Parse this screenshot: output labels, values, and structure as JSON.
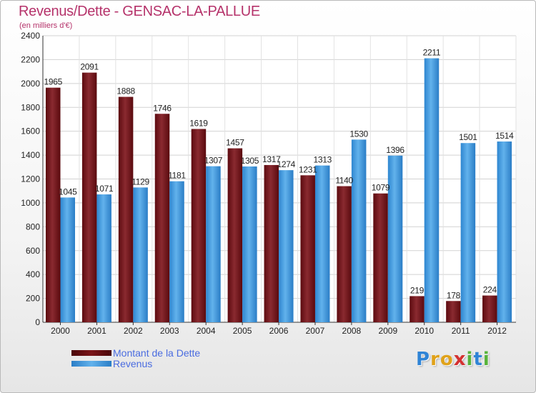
{
  "chart_data": {
    "type": "bar",
    "title": "Revenus/Dette - GENSAC-LA-PALLUE",
    "subtitle": "(en milliers d'€)",
    "categories": [
      "2000",
      "2001",
      "2002",
      "2003",
      "2004",
      "2005",
      "2006",
      "2007",
      "2008",
      "2009",
      "2010",
      "2011",
      "2012"
    ],
    "series": [
      {
        "name": "Montant de la Dette",
        "color": "#7a1418",
        "values": [
          1965,
          2091,
          1888,
          1746,
          1619,
          1457,
          1317,
          1231,
          1140,
          1079,
          219,
          178,
          224
        ]
      },
      {
        "name": "Revenus",
        "color": "#3d9be0",
        "values": [
          1045,
          1071,
          1129,
          1181,
          1307,
          1305,
          1274,
          1313,
          1530,
          1396,
          2211,
          1501,
          1514
        ]
      }
    ],
    "ylim": [
      0,
      2400
    ],
    "yticks": [
      0,
      200,
      400,
      600,
      800,
      1000,
      1200,
      1400,
      1600,
      1800,
      2000,
      2200,
      2400
    ],
    "grid": true,
    "legend_position": "bottom-left"
  },
  "legend": {
    "items": [
      {
        "label": "Montant de la Dette",
        "color": "#5e0a0e"
      },
      {
        "label": "Revenus",
        "color": "#3d9be0"
      }
    ]
  },
  "logo": {
    "letters": [
      "P",
      "r",
      "o",
      "x",
      "i",
      "t",
      "i"
    ],
    "colors": [
      "#2f84d6",
      "#e0a21a",
      "#e0a21a",
      "#d43131",
      "#57b33b",
      "#2f84d6",
      "#57b33b"
    ]
  }
}
